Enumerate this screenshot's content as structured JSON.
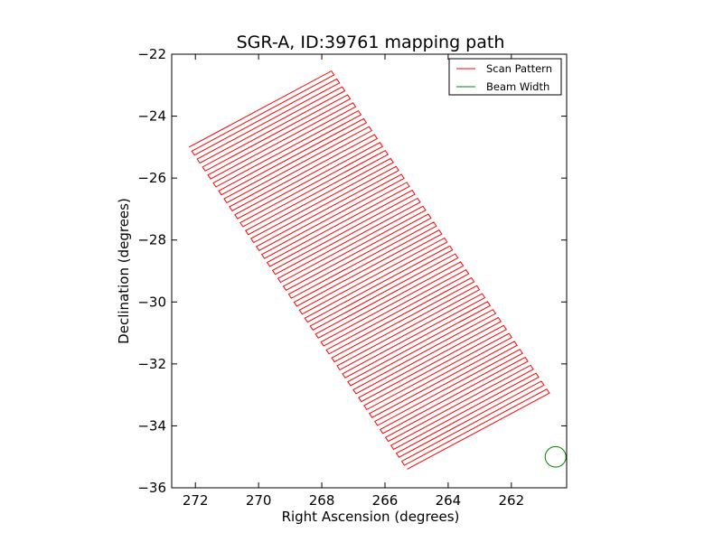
{
  "chart_data": {
    "type": "line",
    "title": "SGR-A, ID:39761 mapping path",
    "xlabel": "Right Ascension (degrees)",
    "ylabel": "Declination (degrees)",
    "xlim": [
      272.75,
      260.25
    ],
    "ylim": [
      -36,
      -22
    ],
    "x_inverted": true,
    "xticks": [
      272,
      270,
      268,
      266,
      264,
      262
    ],
    "xtick_labels": [
      "272",
      "270",
      "268",
      "266",
      "264",
      "262"
    ],
    "yticks": [
      -22,
      -24,
      -26,
      -28,
      -30,
      -32,
      -34,
      -36
    ],
    "ytick_labels": [
      "−22",
      "−24",
      "−26",
      "−28",
      "−30",
      "−32",
      "−34",
      "−36"
    ],
    "grid": false,
    "legend": {
      "placement": "top-right",
      "entries": [
        {
          "label": "Scan Pattern",
          "color": "#ff0000"
        },
        {
          "label": "Beam Width",
          "color": "#008000"
        }
      ]
    },
    "series": [
      {
        "name": "Scan Pattern",
        "color": "#ff0000",
        "kind": "raster-scan",
        "n_legs": 82,
        "start_corner": {
          "x": 272.2,
          "y": -25.0
        },
        "along_scan_end": {
          "x": 267.8,
          "y": -22.6
        },
        "cross_scan_end": {
          "x": 265.3,
          "y": -35.4
        },
        "sweep_overshoot_deg": 0.12
      },
      {
        "name": "Beam Width",
        "color": "#008000",
        "kind": "circle",
        "center": {
          "x": 260.6,
          "y": -35.0
        },
        "radius_deg": 0.33
      }
    ]
  }
}
